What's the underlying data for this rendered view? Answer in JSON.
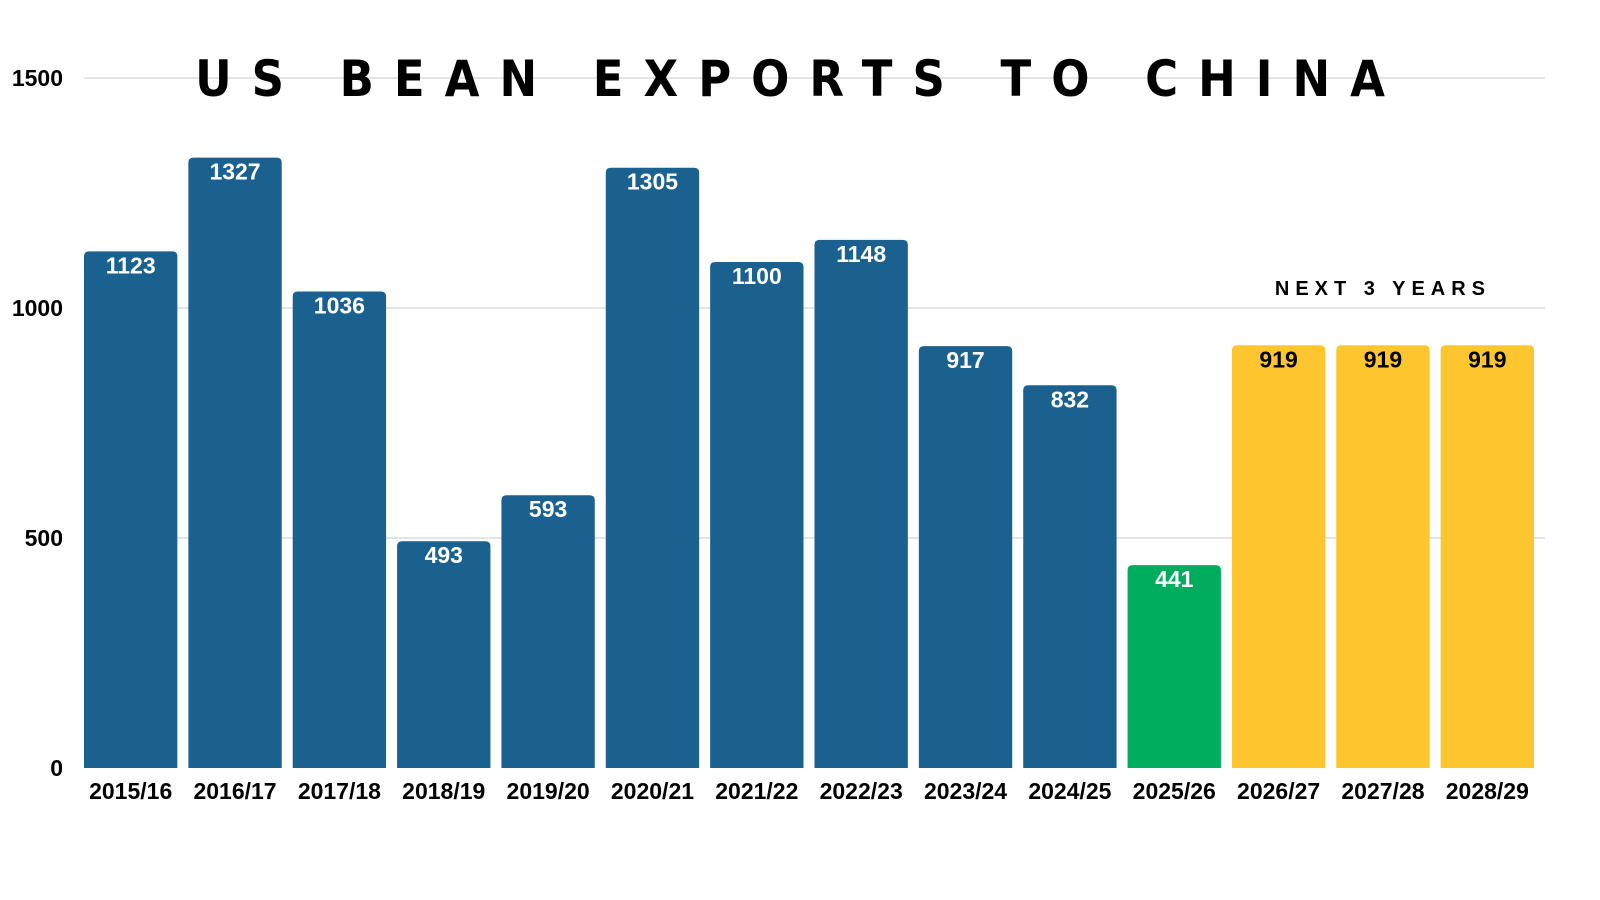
{
  "chart_data": {
    "type": "bar",
    "title": "US BEAN EXPORTS TO CHINA",
    "xlabel": "",
    "ylabel": "",
    "ylim": [
      0,
      1500
    ],
    "yticks": [
      0,
      500,
      1000,
      1500
    ],
    "grid": true,
    "categories": [
      "2015/16",
      "2016/17",
      "2017/18",
      "2018/19",
      "2019/20",
      "2020/21",
      "2021/22",
      "2022/23",
      "2023/24",
      "2024/25",
      "2025/26",
      "2026/27",
      "2027/28",
      "2028/29"
    ],
    "values": [
      1123,
      1327,
      1036,
      493,
      593,
      1305,
      1100,
      1148,
      917,
      832,
      441,
      919,
      919,
      919
    ],
    "bar_colors": [
      "#1a6190",
      "#1a6190",
      "#1a6190",
      "#1a6190",
      "#1a6190",
      "#1a6190",
      "#1a6190",
      "#1a6190",
      "#1a6190",
      "#1a6190",
      "#00ad5f",
      "#fdc52e",
      "#fdc52e",
      "#fdc52e"
    ],
    "label_colors": [
      "#ffffff",
      "#ffffff",
      "#ffffff",
      "#ffffff",
      "#ffffff",
      "#ffffff",
      "#ffffff",
      "#ffffff",
      "#ffffff",
      "#ffffff",
      "#ffffff",
      "#000000",
      "#000000",
      "#000000"
    ],
    "annotations": [
      {
        "text": "NEXT 3 YEARS",
        "over_categories": [
          "2026/27",
          "2027/28",
          "2028/29"
        ]
      }
    ]
  }
}
